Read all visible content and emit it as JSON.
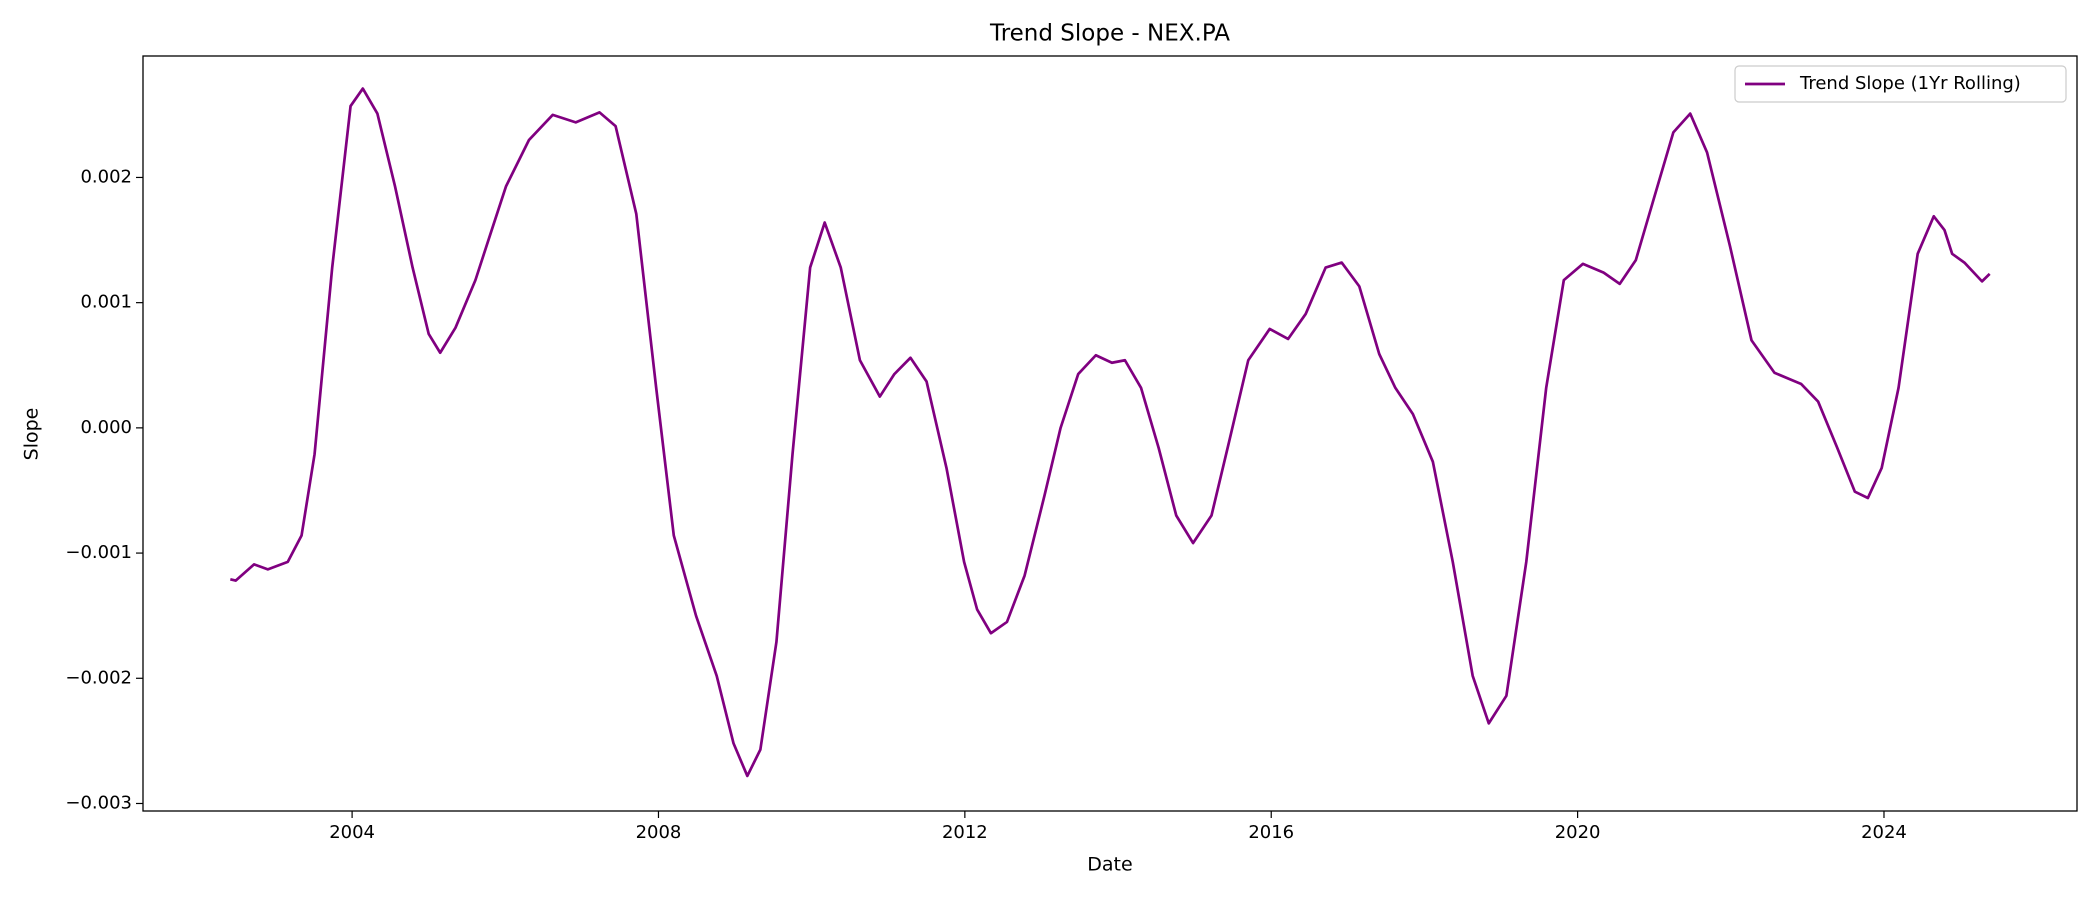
{
  "chart_data": {
    "type": "line",
    "title": "Trend Slope - NEX.PA",
    "x_label": "Date",
    "y_label": "Slope",
    "x": [
      2002.41,
      2002.48,
      2002.72,
      2002.9,
      2003.16,
      2003.34,
      2003.51,
      2003.74,
      2003.98,
      2004.14,
      2004.33,
      2004.56,
      2004.79,
      2005.0,
      2005.15,
      2005.35,
      2005.61,
      2005.78,
      2006.01,
      2006.31,
      2006.62,
      2006.92,
      2007.23,
      2007.44,
      2007.71,
      2007.97,
      2008.2,
      2008.49,
      2008.76,
      2008.98,
      2009.16,
      2009.33,
      2009.54,
      2009.75,
      2009.98,
      2010.17,
      2010.38,
      2010.63,
      2010.89,
      2011.08,
      2011.29,
      2011.5,
      2011.76,
      2011.99,
      2012.16,
      2012.34,
      2012.55,
      2012.78,
      2013.04,
      2013.25,
      2013.48,
      2013.71,
      2013.92,
      2014.09,
      2014.3,
      2014.53,
      2014.76,
      2014.98,
      2015.22,
      2015.45,
      2015.7,
      2015.98,
      2016.22,
      2016.45,
      2016.71,
      2016.92,
      2017.15,
      2017.41,
      2017.62,
      2017.85,
      2018.11,
      2018.37,
      2018.63,
      2018.84,
      2019.07,
      2019.33,
      2019.59,
      2019.82,
      2020.07,
      2020.34,
      2020.55,
      2020.76,
      2020.99,
      2021.25,
      2021.47,
      2021.69,
      2021.99,
      2022.27,
      2022.57,
      2022.92,
      2023.14,
      2023.39,
      2023.62,
      2023.79,
      2023.97,
      2024.19,
      2024.44,
      2024.65,
      2024.79,
      2024.89,
      2025.05,
      2025.28,
      2025.38
    ],
    "series": [
      {
        "name": "Trend Slope (1Yr Rolling)",
        "color": "#800080",
        "values": [
          -0.00121,
          -0.00122,
          -0.00109,
          -0.00113,
          -0.00107,
          -0.00086,
          -0.00021,
          0.00128,
          0.00257,
          0.00271,
          0.00251,
          0.00193,
          0.00128,
          0.00075,
          0.0006,
          0.0008,
          0.00118,
          0.0015,
          0.00193,
          0.0023,
          0.0025,
          0.00244,
          0.00252,
          0.00241,
          0.00171,
          0.00032,
          -0.00086,
          -0.0015,
          -0.00198,
          -0.00252,
          -0.00278,
          -0.00257,
          -0.00171,
          -0.00021,
          0.00128,
          0.00164,
          0.00128,
          0.00054,
          0.00025,
          0.00043,
          0.00056,
          0.00037,
          -0.00032,
          -0.00107,
          -0.00145,
          -0.00164,
          -0.00155,
          -0.00118,
          -0.00054,
          0.0,
          0.00043,
          0.00058,
          0.00052,
          0.00054,
          0.00032,
          -0.00016,
          -0.0007,
          -0.00092,
          -0.0007,
          -0.00011,
          0.00054,
          0.00079,
          0.00071,
          0.00091,
          0.00128,
          0.00132,
          0.00113,
          0.00059,
          0.00032,
          0.00011,
          -0.00027,
          -0.00107,
          -0.00198,
          -0.00236,
          -0.00214,
          -0.00107,
          0.00032,
          0.00118,
          0.00131,
          0.00124,
          0.00115,
          0.00134,
          0.00182,
          0.00236,
          0.00251,
          0.0022,
          0.00145,
          0.0007,
          0.00044,
          0.00035,
          0.00021,
          -0.00016,
          -0.00051,
          -0.00056,
          -0.00032,
          0.00032,
          0.00139,
          0.00169,
          0.00158,
          0.00139,
          0.00132,
          0.00117,
          0.00123
        ]
      }
    ],
    "xlim": [
      2001.27,
      2026.52
    ],
    "xticks": [
      2004,
      2008,
      2012,
      2016,
      2020,
      2024
    ],
    "ylim": [
      -0.00306,
      0.00297
    ],
    "yticks": [
      {
        "value": -0.003,
        "label": "−0.003"
      },
      {
        "value": -0.002,
        "label": "−0.002"
      },
      {
        "value": -0.001,
        "label": "−0.001"
      },
      {
        "value": 0,
        "label": "0.000"
      },
      {
        "value": 0.001,
        "label": "0.001"
      },
      {
        "value": 0.002,
        "label": "0.002"
      }
    ],
    "grid": false,
    "legend": "upper right"
  }
}
